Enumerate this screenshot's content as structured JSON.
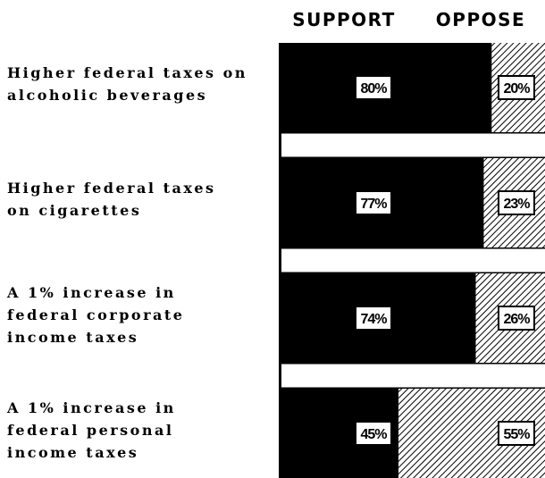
{
  "chart_data": {
    "type": "stacked_bar_horizontal",
    "categories": [
      "Higher federal taxes on\nalcoholic beverages",
      "Higher federal taxes\non cigarettes",
      "A 1% increase in\nfederal corporate\nincome taxes",
      "A 1% increase in\nfederal personal\nincome taxes"
    ],
    "series": [
      {
        "name": "SUPPORT",
        "color": "#000000",
        "values": [
          80,
          77,
          74,
          45
        ],
        "value_labels": [
          "80%",
          "77%",
          "74%",
          "45%"
        ]
      },
      {
        "name": "OPPOSE",
        "color": "#000000",
        "values": [
          20,
          23,
          26,
          55
        ],
        "value_labels": [
          "20%",
          "23%",
          "26%",
          "55%"
        ]
      }
    ],
    "xlim": [
      0,
      100
    ]
  }
}
